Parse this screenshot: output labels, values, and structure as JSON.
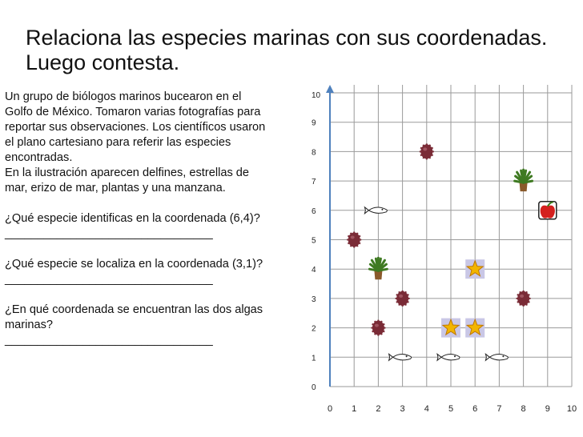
{
  "title": {
    "line1": "Relaciona las especies marinas con sus coordenadas.",
    "line2": "Luego contesta."
  },
  "intro": {
    "line1": "Un grupo de biólogos marinos bucearon en el",
    "line2": "Golfo de México. Tomaron varias fotografías para",
    "line3": "reportar sus observaciones. Los científicos usaron",
    "line4": "el plano cartesiano para referir las especies",
    "line5": "encontradas.",
    "line6": "En la ilustración aparecen delfines, estrellas de",
    "line7": "mar, erizo de mar, plantas y una manzana."
  },
  "questions": [
    {
      "text": "¿Qué especie identificas en la coordenada (6,4)?",
      "answer_line": "________________________________"
    },
    {
      "text": "¿Qué especie se localiza en la coordenada (3,1)?",
      "answer_line": "________________________________"
    },
    {
      "text": "¿En qué coordenada se encuentran las dos algas",
      "text2": "marinas?",
      "answer_line": "________________________________"
    }
  ],
  "chart_data": {
    "type": "scatter",
    "x_ticks": [
      "0",
      "1",
      "2",
      "3",
      "4",
      "5",
      "6",
      "7",
      "8",
      "9",
      "10"
    ],
    "y_ticks": [
      "0",
      "1",
      "2",
      "3",
      "4",
      "5",
      "6",
      "7",
      "8",
      "9",
      "10"
    ],
    "xlim": [
      0,
      10
    ],
    "ylim": [
      0,
      10
    ],
    "grid": true,
    "points": [
      {
        "x": 4,
        "y": 8,
        "icon": "sea-urchin-icon"
      },
      {
        "x": 1,
        "y": 5,
        "icon": "sea-urchin-icon"
      },
      {
        "x": 3,
        "y": 3,
        "icon": "sea-urchin-icon"
      },
      {
        "x": 2,
        "y": 2,
        "icon": "sea-urchin-icon"
      },
      {
        "x": 8,
        "y": 3,
        "icon": "sea-urchin-icon"
      },
      {
        "x": 8,
        "y": 7,
        "icon": "plant-icon"
      },
      {
        "x": 2,
        "y": 4,
        "icon": "plant-icon"
      },
      {
        "x": 6,
        "y": 4,
        "icon": "starfish-icon"
      },
      {
        "x": 5,
        "y": 2,
        "icon": "starfish-icon"
      },
      {
        "x": 6,
        "y": 2,
        "icon": "starfish-icon"
      },
      {
        "x": 2,
        "y": 6,
        "icon": "dolphin-icon"
      },
      {
        "x": 3,
        "y": 1,
        "icon": "dolphin-icon"
      },
      {
        "x": 5,
        "y": 1,
        "icon": "dolphin-icon"
      },
      {
        "x": 7,
        "y": 1,
        "icon": "dolphin-icon"
      },
      {
        "x": 9,
        "y": 6,
        "icon": "apple-icon"
      }
    ],
    "colors": {
      "axis": "#4f81bd",
      "grid": "#9a9a9a",
      "urchin": "#7a2b36",
      "plant": "#3f7a22",
      "pot": "#8a5a2b",
      "star": "#f2b500",
      "star_bg": "#c9c7e6",
      "apple": "#d4201e"
    }
  }
}
